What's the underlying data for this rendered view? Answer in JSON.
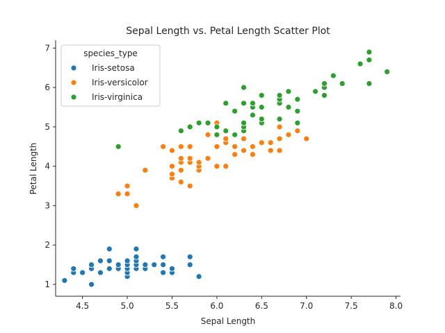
{
  "chart_data": {
    "type": "scatter",
    "title": "Sepal Length vs. Petal Length Scatter Plot",
    "xlabel": "Sepal Length",
    "ylabel": "Petal Length",
    "xlim": [
      4.2,
      8.05
    ],
    "ylim": [
      0.7,
      7.2
    ],
    "xticks": [
      4.5,
      5.0,
      5.5,
      6.0,
      6.5,
      7.0,
      7.5,
      8.0
    ],
    "yticks": [
      1,
      2,
      3,
      4,
      5,
      6,
      7
    ],
    "xtick_labels": [
      "4.5",
      "5.0",
      "5.5",
      "6.0",
      "6.5",
      "7.0",
      "7.5",
      "8.0"
    ],
    "ytick_labels": [
      "1",
      "2",
      "3",
      "4",
      "5",
      "6",
      "7"
    ],
    "grid": false,
    "legend": {
      "title": "species_type",
      "placement": "top-left"
    },
    "series": [
      {
        "name": "Iris-setosa",
        "color": "#1f77b4",
        "points": [
          [
            4.3,
            1.1
          ],
          [
            4.4,
            1.3
          ],
          [
            4.4,
            1.4
          ],
          [
            4.5,
            1.3
          ],
          [
            4.6,
            1.0
          ],
          [
            4.6,
            1.4
          ],
          [
            4.6,
            1.5
          ],
          [
            4.7,
            1.3
          ],
          [
            4.7,
            1.6
          ],
          [
            4.8,
            1.4
          ],
          [
            4.8,
            1.6
          ],
          [
            4.8,
            1.9
          ],
          [
            4.9,
            1.4
          ],
          [
            4.9,
            1.5
          ],
          [
            5.0,
            1.2
          ],
          [
            5.0,
            1.3
          ],
          [
            5.0,
            1.4
          ],
          [
            5.0,
            1.5
          ],
          [
            5.0,
            1.6
          ],
          [
            5.1,
            1.4
          ],
          [
            5.1,
            1.5
          ],
          [
            5.1,
            1.6
          ],
          [
            5.1,
            1.7
          ],
          [
            5.1,
            1.9
          ],
          [
            5.2,
            1.4
          ],
          [
            5.2,
            1.5
          ],
          [
            5.3,
            1.5
          ],
          [
            5.4,
            1.3
          ],
          [
            5.4,
            1.5
          ],
          [
            5.4,
            1.7
          ],
          [
            5.5,
            1.3
          ],
          [
            5.5,
            1.4
          ],
          [
            5.7,
            1.5
          ],
          [
            5.7,
            1.7
          ],
          [
            5.8,
            1.2
          ]
        ]
      },
      {
        "name": "Iris-versicolor",
        "color": "#ff7f0e",
        "points": [
          [
            4.9,
            3.3
          ],
          [
            5.0,
            3.3
          ],
          [
            5.0,
            3.5
          ],
          [
            5.1,
            3.0
          ],
          [
            5.2,
            3.9
          ],
          [
            5.4,
            4.5
          ],
          [
            5.5,
            3.7
          ],
          [
            5.5,
            3.8
          ],
          [
            5.5,
            4.0
          ],
          [
            5.5,
            4.4
          ],
          [
            5.6,
            3.6
          ],
          [
            5.6,
            3.9
          ],
          [
            5.6,
            4.1
          ],
          [
            5.6,
            4.2
          ],
          [
            5.6,
            4.5
          ],
          [
            5.7,
            3.5
          ],
          [
            5.7,
            4.1
          ],
          [
            5.7,
            4.2
          ],
          [
            5.7,
            4.5
          ],
          [
            5.8,
            3.9
          ],
          [
            5.8,
            4.0
          ],
          [
            5.8,
            4.1
          ],
          [
            5.9,
            4.2
          ],
          [
            5.9,
            4.8
          ],
          [
            6.0,
            4.0
          ],
          [
            6.0,
            4.5
          ],
          [
            6.0,
            5.1
          ],
          [
            6.1,
            4.0
          ],
          [
            6.1,
            4.6
          ],
          [
            6.1,
            4.7
          ],
          [
            6.2,
            4.3
          ],
          [
            6.2,
            4.5
          ],
          [
            6.3,
            4.4
          ],
          [
            6.3,
            4.7
          ],
          [
            6.3,
            4.9
          ],
          [
            6.4,
            4.3
          ],
          [
            6.4,
            4.5
          ],
          [
            6.5,
            4.6
          ],
          [
            6.6,
            4.4
          ],
          [
            6.6,
            4.6
          ],
          [
            6.7,
            4.4
          ],
          [
            6.7,
            4.7
          ],
          [
            6.7,
            5.0
          ],
          [
            6.8,
            4.8
          ],
          [
            6.9,
            4.9
          ],
          [
            7.0,
            4.7
          ]
        ]
      },
      {
        "name": "Iris-virginica",
        "color": "#2ca02c",
        "points": [
          [
            4.9,
            4.5
          ],
          [
            5.6,
            4.9
          ],
          [
            5.7,
            5.0
          ],
          [
            5.8,
            5.1
          ],
          [
            5.9,
            5.1
          ],
          [
            6.0,
            4.8
          ],
          [
            6.0,
            5.0
          ],
          [
            6.1,
            4.9
          ],
          [
            6.1,
            5.6
          ],
          [
            6.2,
            4.8
          ],
          [
            6.2,
            5.4
          ],
          [
            6.3,
            4.9
          ],
          [
            6.3,
            5.0
          ],
          [
            6.3,
            5.1
          ],
          [
            6.3,
            5.6
          ],
          [
            6.3,
            6.0
          ],
          [
            6.4,
            5.3
          ],
          [
            6.4,
            5.5
          ],
          [
            6.4,
            5.6
          ],
          [
            6.5,
            5.1
          ],
          [
            6.5,
            5.2
          ],
          [
            6.5,
            5.5
          ],
          [
            6.5,
            5.8
          ],
          [
            6.7,
            5.2
          ],
          [
            6.7,
            5.6
          ],
          [
            6.7,
            5.7
          ],
          [
            6.7,
            5.8
          ],
          [
            6.8,
            5.5
          ],
          [
            6.8,
            5.9
          ],
          [
            6.9,
            5.1
          ],
          [
            6.9,
            5.4
          ],
          [
            6.9,
            5.7
          ],
          [
            7.1,
            5.9
          ],
          [
            7.2,
            5.8
          ],
          [
            7.2,
            6.0
          ],
          [
            7.2,
            6.1
          ],
          [
            7.3,
            6.3
          ],
          [
            7.4,
            6.1
          ],
          [
            7.6,
            6.6
          ],
          [
            7.7,
            6.1
          ],
          [
            7.7,
            6.7
          ],
          [
            7.7,
            6.9
          ],
          [
            7.9,
            6.4
          ]
        ]
      }
    ]
  }
}
